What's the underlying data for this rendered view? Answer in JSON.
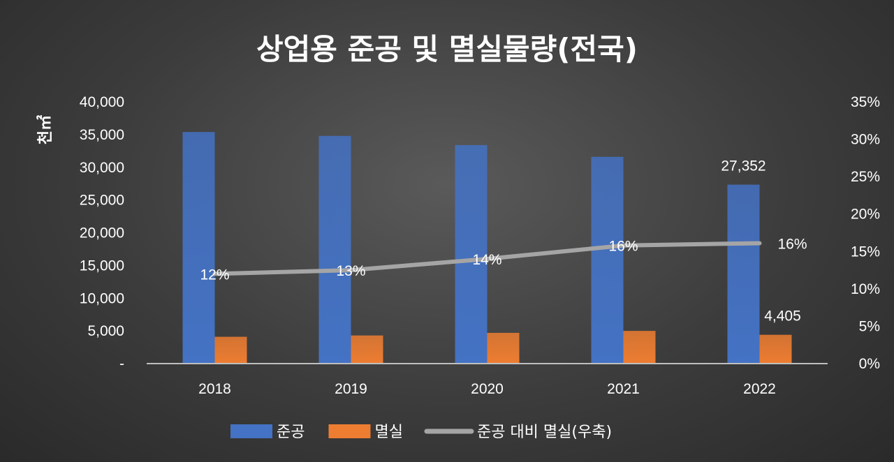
{
  "chart_data": {
    "type": "bar",
    "title": "상업용 준공 및 멸실물량(전국)",
    "ylabel": "천㎡",
    "categories": [
      "2018",
      "2019",
      "2020",
      "2021",
      "2022"
    ],
    "series": [
      {
        "name": "준공",
        "kind": "bar",
        "axis": "left",
        "color": "#4472C4",
        "values": [
          35400,
          34800,
          33400,
          31600,
          27352
        ]
      },
      {
        "name": "멸실",
        "kind": "bar",
        "axis": "left",
        "color": "#ED7D31",
        "values": [
          4100,
          4300,
          4700,
          5000,
          4405
        ]
      },
      {
        "name": "준공 대비 멸실(우축)",
        "kind": "line",
        "axis": "right",
        "color": "#A5A5A5",
        "values": [
          0.12,
          0.125,
          0.14,
          0.158,
          0.161
        ],
        "labels": [
          "12%",
          "13%",
          "14%",
          "16%",
          "16%"
        ]
      }
    ],
    "bar_value_labels": {
      "준공": [
        "",
        "",
        "",
        "",
        "27,352"
      ],
      "멸실": [
        "",
        "",
        "",
        "",
        "4,405"
      ]
    },
    "ylim": [
      0,
      40000
    ],
    "yticks": [
      "-",
      "5,000",
      "10,000",
      "15,000",
      "20,000",
      "25,000",
      "30,000",
      "35,000",
      "40,000"
    ],
    "y2lim": [
      0,
      0.35
    ],
    "y2ticks": [
      "0%",
      "5%",
      "10%",
      "15%",
      "20%",
      "25%",
      "30%",
      "35%"
    ],
    "grid": false,
    "legend": "bottom"
  }
}
